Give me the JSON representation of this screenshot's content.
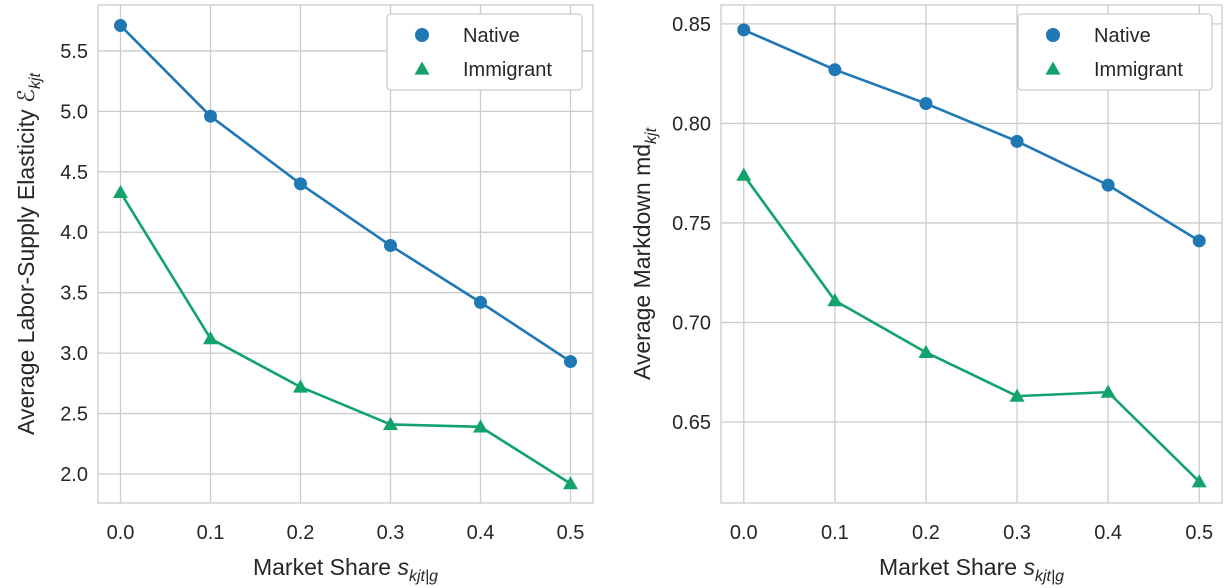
{
  "colors": {
    "native": "#1f77b4",
    "immigrant": "#11a36b",
    "grid": "#cccccc"
  },
  "chart_data": [
    {
      "type": "line",
      "x": [
        0.0,
        0.1,
        0.2,
        0.3,
        0.4,
        0.5
      ],
      "x_tick_labels": [
        "0.0",
        "0.1",
        "0.2",
        "0.3",
        "0.4",
        "0.5"
      ],
      "xlim": [
        -0.025,
        0.525
      ],
      "y_ticks": [
        2.0,
        2.5,
        3.0,
        3.5,
        4.0,
        4.5,
        5.0,
        5.5
      ],
      "y_tick_labels": [
        "2.0",
        "2.5",
        "3.0",
        "3.5",
        "4.0",
        "4.5",
        "5.0",
        "5.5"
      ],
      "ylim": [
        1.76,
        5.88
      ],
      "xlabel": {
        "text": "Market Share ",
        "math": "s",
        "sub": "kjt|g"
      },
      "ylabel": {
        "text": "Average Labor-Supply Elasticity ",
        "math": "ℰ",
        "sub": "kjt"
      },
      "series": [
        {
          "name": "Native",
          "marker": "circle",
          "values": [
            5.71,
            4.96,
            4.4,
            3.89,
            3.42,
            2.93
          ]
        },
        {
          "name": "Immigrant",
          "marker": "triangle",
          "values": [
            4.33,
            3.12,
            2.72,
            2.41,
            2.39,
            1.92
          ]
        }
      ],
      "legend": "top-right",
      "grid": true
    },
    {
      "type": "line",
      "x": [
        0.0,
        0.1,
        0.2,
        0.3,
        0.4,
        0.5
      ],
      "x_tick_labels": [
        "0.0",
        "0.1",
        "0.2",
        "0.3",
        "0.4",
        "0.5"
      ],
      "xlim": [
        -0.025,
        0.525
      ],
      "y_ticks": [
        0.65,
        0.7,
        0.75,
        0.8,
        0.85
      ],
      "y_tick_labels": [
        "0.65",
        "0.70",
        "0.75",
        "0.80",
        "0.85"
      ],
      "ylim": [
        0.6093,
        0.8595
      ],
      "xlabel": {
        "text": "Market Share ",
        "math": "s",
        "sub": "kjt|g"
      },
      "ylabel": {
        "text": "Average Markdown md",
        "math": "",
        "sub": "kjt"
      },
      "series": [
        {
          "name": "Native",
          "marker": "circle",
          "values": [
            0.847,
            0.827,
            0.81,
            0.791,
            0.769,
            0.741
          ]
        },
        {
          "name": "Immigrant",
          "marker": "triangle",
          "values": [
            0.774,
            0.711,
            0.685,
            0.663,
            0.665,
            0.62
          ]
        }
      ],
      "legend": "top-right",
      "grid": true
    }
  ]
}
